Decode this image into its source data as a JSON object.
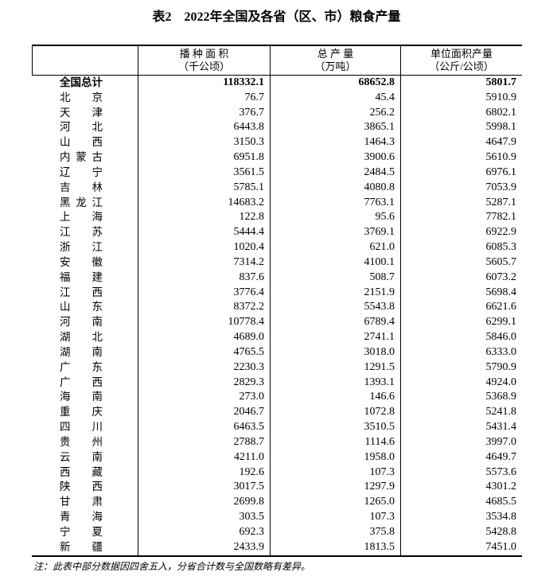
{
  "page": {
    "title": "表2　2022年全国及各省（区、市）粮食产量",
    "note": "注：此表中部分数据因四舍五入，分省合计数与全国数略有差异。"
  },
  "table": {
    "stub_header": "",
    "columns": [
      {
        "name": "sown-area",
        "line1": "播 种 面 积",
        "line2": "（千公顷）"
      },
      {
        "name": "total-output",
        "line1": "总 产 量",
        "line2": "（万吨）"
      },
      {
        "name": "yield-per-area",
        "line1": "单位面积产量",
        "line2": "（公斤/公顷）"
      }
    ],
    "rows": [
      {
        "name": "全国总计",
        "bold": true,
        "values": [
          "118332.1",
          "68652.8",
          "5801.7"
        ]
      },
      {
        "name": "北京",
        "bold": false,
        "values": [
          "76.7",
          "45.4",
          "5910.9"
        ]
      },
      {
        "name": "天津",
        "bold": false,
        "values": [
          "376.7",
          "256.2",
          "6802.1"
        ]
      },
      {
        "name": "河北",
        "bold": false,
        "values": [
          "6443.8",
          "3865.1",
          "5998.1"
        ]
      },
      {
        "name": "山西",
        "bold": false,
        "values": [
          "3150.3",
          "1464.3",
          "4647.9"
        ]
      },
      {
        "name": "内蒙古",
        "bold": false,
        "values": [
          "6951.8",
          "3900.6",
          "5610.9"
        ]
      },
      {
        "name": "辽宁",
        "bold": false,
        "values": [
          "3561.5",
          "2484.5",
          "6976.1"
        ]
      },
      {
        "name": "吉林",
        "bold": false,
        "values": [
          "5785.1",
          "4080.8",
          "7053.9"
        ]
      },
      {
        "name": "黑龙江",
        "bold": false,
        "values": [
          "14683.2",
          "7763.1",
          "5287.1"
        ]
      },
      {
        "name": "上海",
        "bold": false,
        "values": [
          "122.8",
          "95.6",
          "7782.1"
        ]
      },
      {
        "name": "江苏",
        "bold": false,
        "values": [
          "5444.4",
          "3769.1",
          "6922.9"
        ]
      },
      {
        "name": "浙江",
        "bold": false,
        "values": [
          "1020.4",
          "621.0",
          "6085.3"
        ]
      },
      {
        "name": "安徽",
        "bold": false,
        "values": [
          "7314.2",
          "4100.1",
          "5605.7"
        ]
      },
      {
        "name": "福建",
        "bold": false,
        "values": [
          "837.6",
          "508.7",
          "6073.2"
        ]
      },
      {
        "name": "江西",
        "bold": false,
        "values": [
          "3776.4",
          "2151.9",
          "5698.4"
        ]
      },
      {
        "name": "山东",
        "bold": false,
        "values": [
          "8372.2",
          "5543.8",
          "6621.6"
        ]
      },
      {
        "name": "河南",
        "bold": false,
        "values": [
          "10778.4",
          "6789.4",
          "6299.1"
        ]
      },
      {
        "name": "湖北",
        "bold": false,
        "values": [
          "4689.0",
          "2741.1",
          "5846.0"
        ]
      },
      {
        "name": "湖南",
        "bold": false,
        "values": [
          "4765.5",
          "3018.0",
          "6333.0"
        ]
      },
      {
        "name": "广东",
        "bold": false,
        "values": [
          "2230.3",
          "1291.5",
          "5790.9"
        ]
      },
      {
        "name": "广西",
        "bold": false,
        "values": [
          "2829.3",
          "1393.1",
          "4924.0"
        ]
      },
      {
        "name": "海南",
        "bold": false,
        "values": [
          "273.0",
          "146.6",
          "5368.9"
        ]
      },
      {
        "name": "重庆",
        "bold": false,
        "values": [
          "2046.7",
          "1072.8",
          "5241.8"
        ]
      },
      {
        "name": "四川",
        "bold": false,
        "values": [
          "6463.5",
          "3510.5",
          "5431.4"
        ]
      },
      {
        "name": "贵州",
        "bold": false,
        "values": [
          "2788.7",
          "1114.6",
          "3997.0"
        ]
      },
      {
        "name": "云南",
        "bold": false,
        "values": [
          "4211.0",
          "1958.0",
          "4649.7"
        ]
      },
      {
        "name": "西藏",
        "bold": false,
        "values": [
          "192.6",
          "107.3",
          "5573.6"
        ]
      },
      {
        "name": "陕西",
        "bold": false,
        "values": [
          "3017.5",
          "1297.9",
          "4301.2"
        ]
      },
      {
        "name": "甘肃",
        "bold": false,
        "values": [
          "2699.8",
          "1265.0",
          "4685.5"
        ]
      },
      {
        "name": "青海",
        "bold": false,
        "values": [
          "303.5",
          "107.3",
          "3534.8"
        ]
      },
      {
        "name": "宁夏",
        "bold": false,
        "values": [
          "692.3",
          "375.8",
          "5428.8"
        ]
      },
      {
        "name": "新疆",
        "bold": false,
        "values": [
          "2433.9",
          "1813.5",
          "7451.0"
        ]
      }
    ]
  }
}
